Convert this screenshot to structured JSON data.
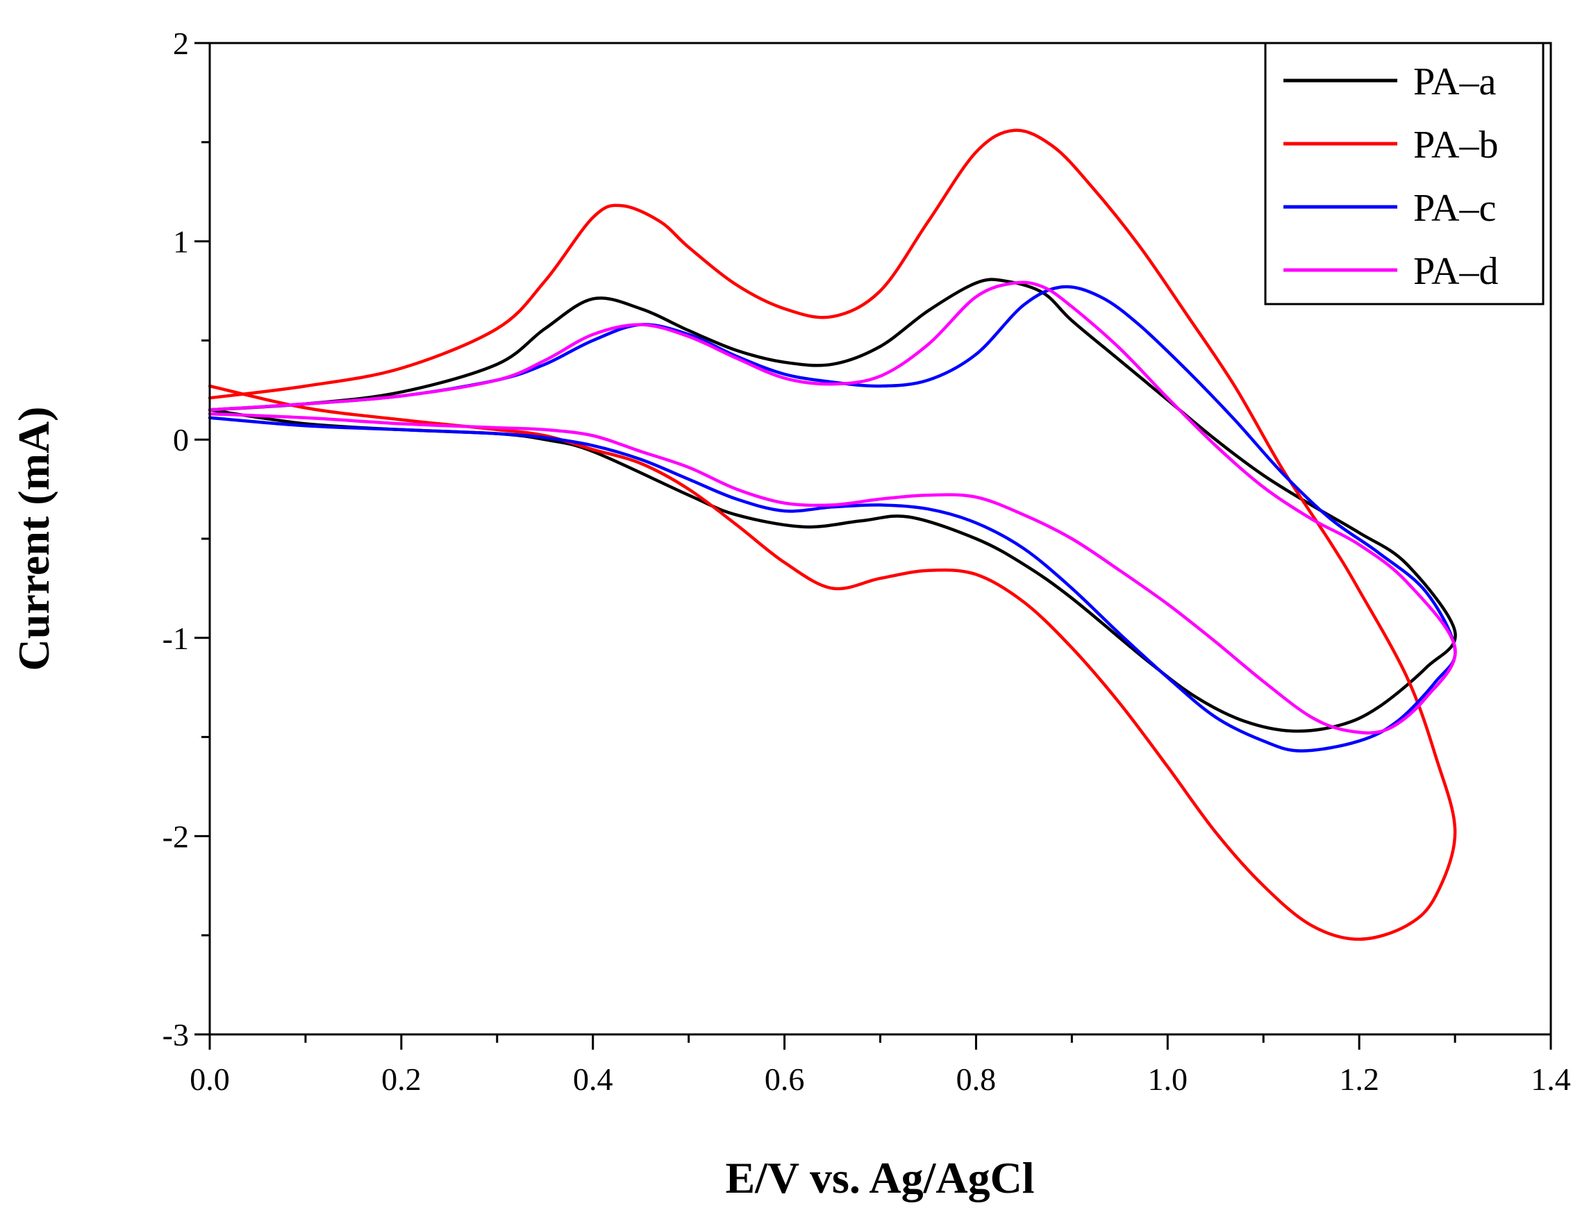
{
  "chart_data": {
    "type": "line",
    "title": "",
    "xlabel": "E/V vs. Ag/AgCl",
    "ylabel": "Current (mA)",
    "xlim": [
      0.0,
      1.4
    ],
    "ylim": [
      -3,
      2
    ],
    "xticks": [
      0.0,
      0.2,
      0.4,
      0.6,
      0.8,
      1.0,
      1.2,
      1.4
    ],
    "xtick_labels": [
      "0.0",
      "0.2",
      "0.4",
      "0.6",
      "0.8",
      "1.0",
      "1.2",
      "1.4"
    ],
    "yticks": [
      2,
      1,
      0,
      -1,
      -2,
      -3
    ],
    "ytick_labels": [
      "2",
      "1",
      "0",
      "-1",
      "-2",
      "-3"
    ],
    "grid": false,
    "legend_position": "top-right",
    "series": [
      {
        "name": "PA–a",
        "color": "#000000",
        "x": [
          0.0,
          0.1,
          0.2,
          0.3,
          0.35,
          0.4,
          0.45,
          0.5,
          0.55,
          0.6,
          0.65,
          0.7,
          0.75,
          0.8,
          0.83,
          0.87,
          0.9,
          0.95,
          1.0,
          1.05,
          1.1,
          1.15,
          1.2,
          1.25,
          1.3,
          1.27,
          1.22,
          1.18,
          1.13,
          1.08,
          1.03,
          0.98,
          0.9,
          0.85,
          0.8,
          0.73,
          0.68,
          0.62,
          0.55,
          0.5,
          0.4,
          0.35,
          0.3,
          0.2,
          0.1,
          0.0
        ],
        "y": [
          0.15,
          0.18,
          0.24,
          0.38,
          0.56,
          0.71,
          0.66,
          0.55,
          0.45,
          0.39,
          0.38,
          0.47,
          0.65,
          0.79,
          0.8,
          0.74,
          0.6,
          0.4,
          0.2,
          0.0,
          -0.18,
          -0.33,
          -0.47,
          -0.63,
          -0.97,
          -1.15,
          -1.35,
          -1.44,
          -1.47,
          -1.42,
          -1.3,
          -1.12,
          -0.8,
          -0.63,
          -0.5,
          -0.39,
          -0.41,
          -0.44,
          -0.38,
          -0.28,
          -0.06,
          0.0,
          0.03,
          0.05,
          0.08,
          0.15
        ]
      },
      {
        "name": "PA–b",
        "color": "#ff0000",
        "x": [
          0.0,
          0.1,
          0.2,
          0.3,
          0.35,
          0.4,
          0.43,
          0.47,
          0.5,
          0.55,
          0.6,
          0.65,
          0.7,
          0.75,
          0.8,
          0.84,
          0.88,
          0.92,
          0.97,
          1.02,
          1.07,
          1.12,
          1.17,
          1.2,
          1.25,
          1.28,
          1.3,
          1.28,
          1.25,
          1.2,
          1.15,
          1.1,
          1.05,
          1.0,
          0.95,
          0.9,
          0.85,
          0.8,
          0.75,
          0.7,
          0.65,
          0.6,
          0.55,
          0.5,
          0.45,
          0.4,
          0.35,
          0.3,
          0.2,
          0.1,
          0.0
        ],
        "y": [
          0.21,
          0.27,
          0.36,
          0.56,
          0.8,
          1.12,
          1.18,
          1.1,
          0.97,
          0.78,
          0.66,
          0.62,
          0.75,
          1.1,
          1.45,
          1.56,
          1.48,
          1.28,
          0.98,
          0.63,
          0.27,
          -0.15,
          -0.52,
          -0.76,
          -1.2,
          -1.6,
          -1.98,
          -2.3,
          -2.45,
          -2.52,
          -2.45,
          -2.25,
          -1.98,
          -1.65,
          -1.33,
          -1.05,
          -0.82,
          -0.68,
          -0.66,
          -0.7,
          -0.75,
          -0.62,
          -0.43,
          -0.25,
          -0.12,
          -0.05,
          0.02,
          0.05,
          0.1,
          0.16,
          0.27
        ]
      },
      {
        "name": "PA–c",
        "color": "#0000ff",
        "x": [
          0.0,
          0.1,
          0.2,
          0.3,
          0.35,
          0.4,
          0.45,
          0.5,
          0.55,
          0.6,
          0.65,
          0.7,
          0.75,
          0.8,
          0.85,
          0.89,
          0.93,
          0.97,
          1.02,
          1.07,
          1.12,
          1.17,
          1.22,
          1.27,
          1.3,
          1.28,
          1.24,
          1.2,
          1.14,
          1.1,
          1.05,
          1.0,
          0.95,
          0.9,
          0.85,
          0.8,
          0.75,
          0.7,
          0.65,
          0.6,
          0.55,
          0.5,
          0.45,
          0.4,
          0.35,
          0.3,
          0.2,
          0.1,
          0.0
        ],
        "y": [
          0.15,
          0.18,
          0.22,
          0.3,
          0.38,
          0.5,
          0.58,
          0.53,
          0.42,
          0.33,
          0.29,
          0.27,
          0.3,
          0.43,
          0.68,
          0.77,
          0.72,
          0.58,
          0.35,
          0.1,
          -0.17,
          -0.4,
          -0.57,
          -0.77,
          -1.06,
          -1.22,
          -1.42,
          -1.52,
          -1.57,
          -1.52,
          -1.4,
          -1.2,
          -0.98,
          -0.75,
          -0.55,
          -0.42,
          -0.35,
          -0.33,
          -0.34,
          -0.36,
          -0.3,
          -0.2,
          -0.1,
          -0.03,
          0.01,
          0.03,
          0.05,
          0.07,
          0.11
        ]
      },
      {
        "name": "PA–d",
        "color": "#ff00ff",
        "x": [
          0.0,
          0.1,
          0.2,
          0.3,
          0.35,
          0.4,
          0.45,
          0.5,
          0.55,
          0.6,
          0.65,
          0.7,
          0.75,
          0.8,
          0.84,
          0.87,
          0.9,
          0.95,
          1.0,
          1.05,
          1.1,
          1.15,
          1.2,
          1.25,
          1.3,
          1.27,
          1.23,
          1.19,
          1.15,
          1.1,
          1.05,
          1.0,
          0.95,
          0.9,
          0.85,
          0.8,
          0.75,
          0.7,
          0.65,
          0.6,
          0.55,
          0.5,
          0.45,
          0.4,
          0.35,
          0.3,
          0.2,
          0.1,
          0.0
        ],
        "y": [
          0.15,
          0.18,
          0.22,
          0.3,
          0.4,
          0.53,
          0.58,
          0.52,
          0.41,
          0.31,
          0.28,
          0.32,
          0.48,
          0.72,
          0.79,
          0.77,
          0.67,
          0.46,
          0.21,
          -0.03,
          -0.24,
          -0.4,
          -0.53,
          -0.72,
          -1.05,
          -1.3,
          -1.46,
          -1.47,
          -1.4,
          -1.22,
          -1.02,
          -0.83,
          -0.66,
          -0.5,
          -0.38,
          -0.29,
          -0.28,
          -0.3,
          -0.33,
          -0.32,
          -0.25,
          -0.14,
          -0.06,
          0.02,
          0.05,
          0.06,
          0.08,
          0.11,
          0.13
        ]
      }
    ]
  }
}
